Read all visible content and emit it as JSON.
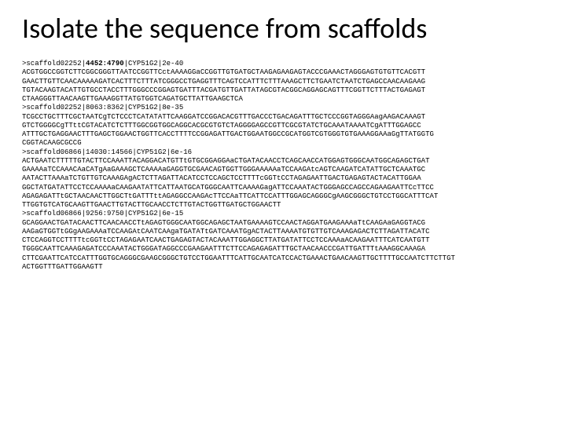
{
  "title": "Isolate the sequence from scaffolds",
  "colors": {
    "background": "#ffffff",
    "text": "#000000"
  },
  "typography": {
    "title_font": "Calibri",
    "title_size_pt": 36,
    "mono_font": "Courier New",
    "mono_size_pt": 9
  },
  "blocks": [
    {
      "header_prefix": ">scaffold02252|",
      "header_bold": "4452:4790",
      "header_suffix": "|CYP51G2|2e-40",
      "sequence": "ACGTGGCCGGTCTTCGGCGGGTTAATCCGGTTCctAAAAGGaCCGGTTGTGATGCTAAGAGAAGAGTACCCGAAACTAGGGAGTGTGTTCACGTT\nGAACTTGTTCAACAAAAAGATCACTTTCTTTATCGGGCCTGAGGTTTCAGTCCATTTCTTTAAAGCTTCTGAATCTAATCTGAGCCAACAAGAAG\nTGTACAAGTACATTGTGCCTACCTTTGGGCCCGGAGTGATTTACGATGTTGATTATAGCGTACGGCAGGAGCAGTTTCGGTTCTTTACTGAGAGT\nCTAAGGGTTAACAAGTTGAAAGGTTATGTGGTCAGATGCTTATTGAAGCTCA"
    },
    {
      "header_prefix": ">scaffold02252|8063:8362|CYP51G2|8e-35",
      "header_bold": "",
      "header_suffix": "",
      "sequence": "TCGCCTGCTTTCGCTAATCgTCTCCCTCATATATTCAAGGATCCGGACACGTTTGACCCTGACAGATTTGCTCCCGGTAGGGAagAAGACAAAGT\nGTCTGGGGCgTTttCGTACATCTCTTTGGCGGTGGCAGGCACGCGTGTCTAGGGGAGCCGTTCGCGTATCTGCAAATAAAATCgATTTGGAGCC\nATTTGCTGAGGAACTTTGAGCTGGAACTGGTTCACCTTTTCCGGAGATTGACTGGAATGGCCGCATGGTCGTGGGTGTGAAAGGAAaGgTTATGGTG\nCGGTACAAGCGCCG"
    },
    {
      "header_prefix": ">scaffold06866|14030:14566|CYP51G2|6e-16",
      "header_bold": "",
      "header_suffix": "",
      "sequence": "ACTGAATCTTTTTGTACTTCCAAATTACAGGACATGTTtGTGCGGAGGAaCTGATACAACCTCAGCAACCATGGAGTGGGCAATGGCAGAGCTGAT\nGAAAAaTCCAAACAaCATgAaGAAAGCTCAAAAaGAGGTGCGAACAGTGGTTGGGAAAAAaTCCAAGAtcAGTCAAGATCATATTGCTCAAATGC\nAATACTTAAAaTCTGTTGTCAAAGAgACTCTTAGATTACATCCTCCAGCTCCTTTTcGGTtCCTAGAGAATTGACTGAGAGTACTACATTGGAA\nGGCTATGATATTCCTCCAAAAaCAAGAATATTCATTAATGCATGGGCAATTCAAAAGagATTCCAAATACTGGGAGCCAGCCAGAAGAATTCcTTCC\nAGAGAGATTtGCTAACAACTTGGCTtGATTTttAGAGGCCAAGAcTTCCAaTTCATTCCATTTGGAGCAGGGCgAAGCGGGCTGTCCTGGCATTTCAT\nTTGGTGTCATGCAAGTTGAACTTGTACTTGCAACCTCTTGTACTGGTTGATGCTGGAACTT"
    },
    {
      "header_prefix": ">scaffold06866|9256:9750|CYP51G2|6e-15",
      "header_bold": "",
      "header_suffix": "",
      "sequence": "GCAGGAACTGATACAACTTCAACAACCTtAGAGTGGGCAATGGCAGAGCTAATGAAAAGTCCAACTAGGATGAAGAAAaTtCAAGAaGAGGTACG\nAAGaGTGGTtGGgAAGAAAaTCCAAGAtCAATCAAgaTGATATtGATCAAATGgACTACTTAAAATGTGTTGTCAAAGAGACTCTTAGATTACATC\nCTCCAGGTCCTTTTtcGGTtCCTAGAGAATCAACTGAGAGTACTACAAATTGGAGGCTTATGATATTCCTCCAAAaACAAGAATTTCATCAATGTT\nTGGGCAATTCAAAGAGATCCCAAATACTGGGATAGGCCCGAAGAATTTCTTCCAGAGAGATTTGCTAACAACCCGATTGATTTtAAAGGCAAAGA\nCTTCGAATTCATCCATTTGGTGCAGGGCGAAGCGGGCTGTCCTGGAATTTCATTGCAATCATCCACTGAAACTGAACAAGTTGCTTTTGCCAATCTTCTTGT\nACTGGTTTGATTGGAAGTT"
    }
  ]
}
